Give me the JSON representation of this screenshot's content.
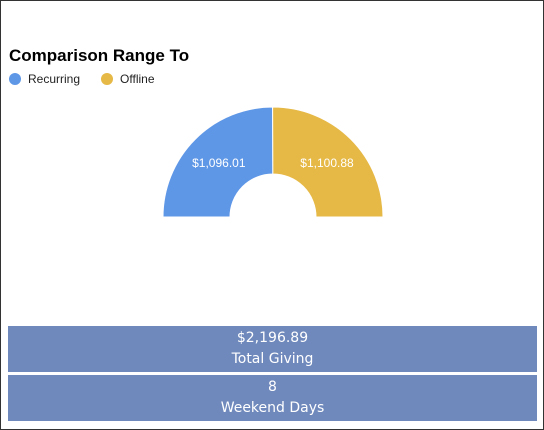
{
  "title": "Comparison Range To",
  "legend": [
    {
      "label": "Recurring",
      "color": "#5f97e7"
    },
    {
      "label": "Offline",
      "color": "#e6b845"
    }
  ],
  "chart_data": {
    "type": "pie",
    "style": "half-donut",
    "categories": [
      "Recurring",
      "Offline"
    ],
    "values": [
      1096.01,
      1100.88
    ],
    "labels": [
      "$1,096.01",
      "$1,100.88"
    ],
    "colors": [
      "#5f97e7",
      "#e6b845"
    ]
  },
  "stats": {
    "total_giving": {
      "value": "$2,196.89",
      "label": "Total Giving"
    },
    "weekend_days": {
      "value": "8",
      "label": "Weekend Days"
    }
  },
  "colors": {
    "stat_bg": "#6f89bc",
    "border": "#333333"
  }
}
